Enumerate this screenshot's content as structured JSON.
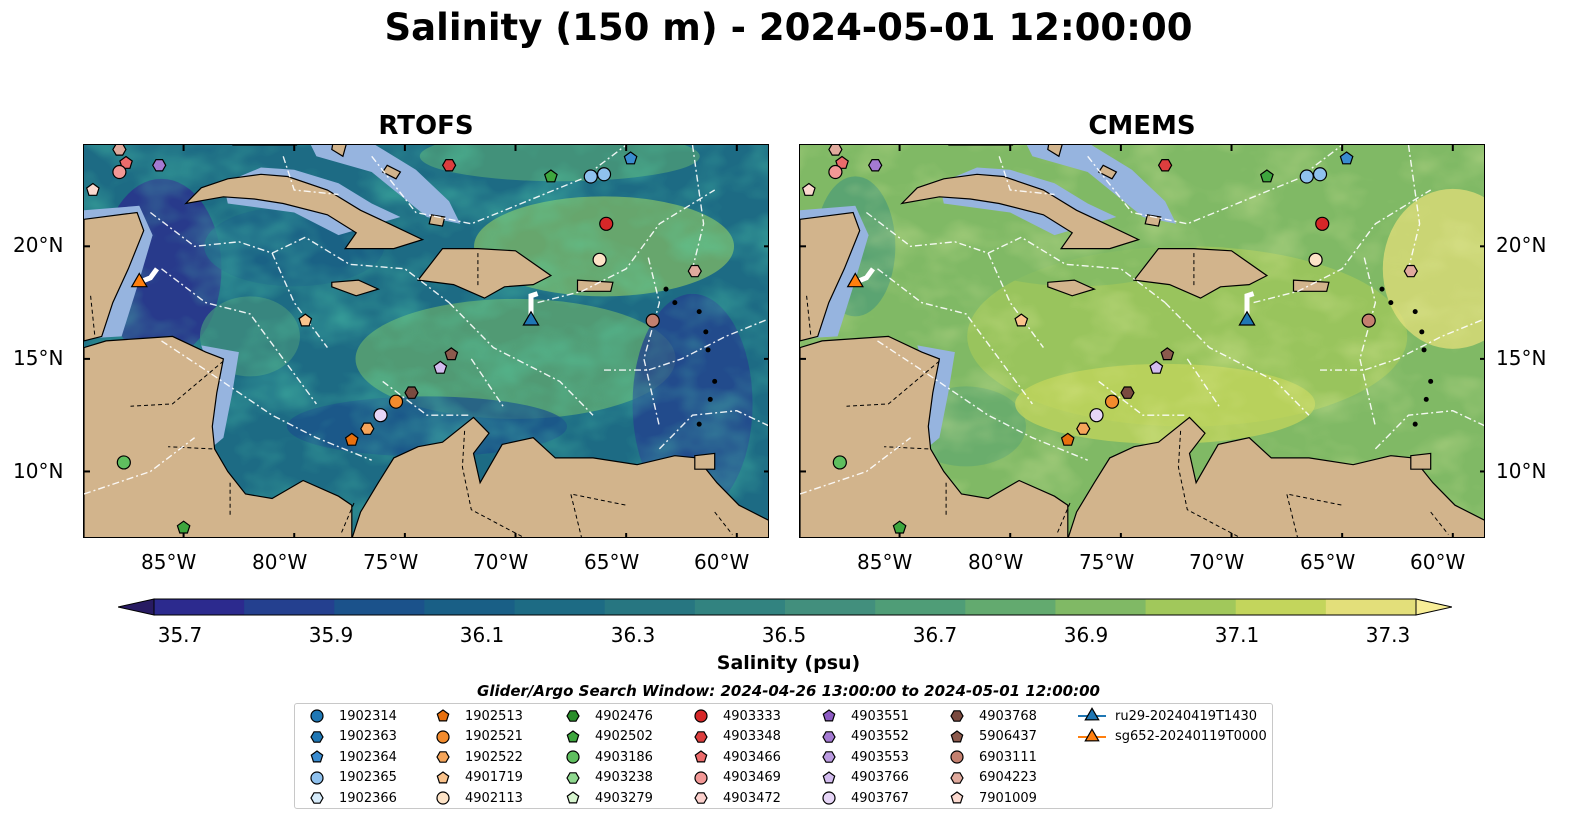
{
  "title": "Salinity (150 m) - 2024-05-01 12:00:00",
  "panels": [
    {
      "title": "RTOFS",
      "theme": "rtofs"
    },
    {
      "title": "CMEMS",
      "theme": "cmems"
    }
  ],
  "axes": {
    "lon_ticks": [
      "85°W",
      "80°W",
      "75°W",
      "70°W",
      "65°W",
      "60°W"
    ],
    "lon_values": [
      -85,
      -80,
      -75,
      -70,
      -65,
      -60
    ],
    "lat_ticks": [
      "20°N",
      "15°N",
      "10°N"
    ],
    "lat_values": [
      20,
      15,
      10
    ],
    "lon_range": [
      -89.5,
      -58.5
    ],
    "lat_range": [
      7,
      24.5
    ]
  },
  "colorbar": {
    "label": "Salinity (psu)",
    "ticks": [
      "35.7",
      "35.9",
      "36.1",
      "36.3",
      "36.5",
      "36.7",
      "36.9",
      "37.1",
      "37.3"
    ],
    "min": 35.6,
    "max": 37.4,
    "step": 0.1,
    "colors": [
      "#281b62",
      "#2c2a8e",
      "#24408f",
      "#1b528b",
      "#195f86",
      "#1d6b84",
      "#277681",
      "#328380",
      "#428f7d",
      "#4f9d77",
      "#63aa6f",
      "#80b965",
      "#a1c85b",
      "#c3d55c",
      "#e3df7a",
      "#f8ee97"
    ],
    "extend": "both"
  },
  "search_window": "Glider/Argo Search Window: 2024-04-26 13:00:00 to 2024-05-01 12:00:00",
  "legend": [
    {
      "label": "1902314",
      "marker": "circle",
      "color": "#1f77b4"
    },
    {
      "label": "1902363",
      "marker": "hexagon",
      "color": "#1f77b4"
    },
    {
      "label": "1902364",
      "marker": "pentagon",
      "color": "#3a8cd0"
    },
    {
      "label": "1902365",
      "marker": "circle",
      "color": "#8fc1ee"
    },
    {
      "label": "1902366",
      "marker": "hexagon",
      "color": "#d6ebfa"
    },
    {
      "label": "1902513",
      "marker": "pentagon",
      "color": "#e8700e"
    },
    {
      "label": "1902521",
      "marker": "circle",
      "color": "#f28b2d"
    },
    {
      "label": "1902522",
      "marker": "hexagon",
      "color": "#f5a55a"
    },
    {
      "label": "4901719",
      "marker": "pentagon",
      "color": "#fac38c"
    },
    {
      "label": "4902113",
      "marker": "circle",
      "color": "#fde3c7"
    },
    {
      "label": "4902476",
      "marker": "hexagon",
      "color": "#2a8d2a"
    },
    {
      "label": "4902502",
      "marker": "pentagon",
      "color": "#3ea63e"
    },
    {
      "label": "4903186",
      "marker": "circle",
      "color": "#5fbf5f"
    },
    {
      "label": "4903238",
      "marker": "hexagon",
      "color": "#8fd88f"
    },
    {
      "label": "4903279",
      "marker": "pentagon",
      "color": "#d7f5cf"
    },
    {
      "label": "4903333",
      "marker": "circle",
      "color": "#d62728"
    },
    {
      "label": "4903348",
      "marker": "hexagon",
      "color": "#dc3e3e"
    },
    {
      "label": "4903466",
      "marker": "pentagon",
      "color": "#ec6b6b"
    },
    {
      "label": "4903469",
      "marker": "circle",
      "color": "#f29896"
    },
    {
      "label": "4903472",
      "marker": "hexagon",
      "color": "#fbd0cc"
    },
    {
      "label": "4903551",
      "marker": "pentagon",
      "color": "#8e5cc4"
    },
    {
      "label": "4903552",
      "marker": "hexagon",
      "color": "#a47ad2"
    },
    {
      "label": "4903553",
      "marker": "hexagon",
      "color": "#bb9be0"
    },
    {
      "label": "4903766",
      "marker": "pentagon",
      "color": "#d3bcef"
    },
    {
      "label": "4903767",
      "marker": "circle",
      "color": "#e7d6f7"
    },
    {
      "label": "4903768",
      "marker": "hexagon",
      "color": "#7a4a3f"
    },
    {
      "label": "5906437",
      "marker": "pentagon",
      "color": "#8c5a4d"
    },
    {
      "label": "6903111",
      "marker": "circle",
      "color": "#c4806f"
    },
    {
      "label": "6904223",
      "marker": "hexagon",
      "color": "#e0aa9d"
    },
    {
      "label": "7901009",
      "marker": "pentagon",
      "color": "#fbd9cf"
    },
    {
      "label": "ru29-20240419T1430",
      "marker": "triangle",
      "color": "#1f77b4"
    },
    {
      "label": "sg652-20240119T0000",
      "marker": "triangle",
      "color": "#ff7f0e"
    }
  ],
  "floats": [
    {
      "id": "6904223",
      "lon": -87.9,
      "lat": 24.3
    },
    {
      "id": "4903466",
      "lon": -87.6,
      "lat": 23.7
    },
    {
      "id": "4903469",
      "lon": -87.9,
      "lat": 23.3
    },
    {
      "id": "4903552",
      "lon": -86.1,
      "lat": 23.6
    },
    {
      "id": "7901009",
      "lon": -89.1,
      "lat": 22.5
    },
    {
      "id": "4903348",
      "lon": -73.0,
      "lat": 23.6
    },
    {
      "id": "4902502",
      "lon": -68.4,
      "lat": 23.1
    },
    {
      "id": "1902365",
      "lon": -66.6,
      "lat": 23.1
    },
    {
      "id": "1902365",
      "lon": -66.0,
      "lat": 23.2
    },
    {
      "id": "1902364",
      "lon": -64.8,
      "lat": 23.9
    },
    {
      "id": "4903333",
      "lon": -65.9,
      "lat": 21.0
    },
    {
      "id": "4902113",
      "lon": -66.2,
      "lat": 19.4
    },
    {
      "id": "6904223",
      "lon": -61.9,
      "lat": 18.9
    },
    {
      "id": "4901719",
      "lon": -79.5,
      "lat": 16.7
    },
    {
      "id": "6903111",
      "lon": -63.8,
      "lat": 16.7
    },
    {
      "id": "5906437",
      "lon": -72.9,
      "lat": 15.2
    },
    {
      "id": "4903766",
      "lon": -73.4,
      "lat": 14.6
    },
    {
      "id": "4903768",
      "lon": -74.7,
      "lat": 13.5
    },
    {
      "id": "1902521",
      "lon": -75.4,
      "lat": 13.1
    },
    {
      "id": "4903767",
      "lon": -76.1,
      "lat": 12.5
    },
    {
      "id": "1902522",
      "lon": -76.7,
      "lat": 11.9
    },
    {
      "id": "1902513",
      "lon": -77.4,
      "lat": 11.4
    },
    {
      "id": "4903186",
      "lon": -87.7,
      "lat": 10.4
    },
    {
      "id": "4902502",
      "lon": -85.0,
      "lat": 7.5
    }
  ],
  "gliders": [
    {
      "id": "sg652-20240119T0000",
      "lon": -87.0,
      "lat": 18.4,
      "color": "#ff7f0e"
    },
    {
      "id": "ru29-20240419T1430",
      "lon": -69.3,
      "lat": 16.7,
      "color": "#1f77b4"
    }
  ]
}
